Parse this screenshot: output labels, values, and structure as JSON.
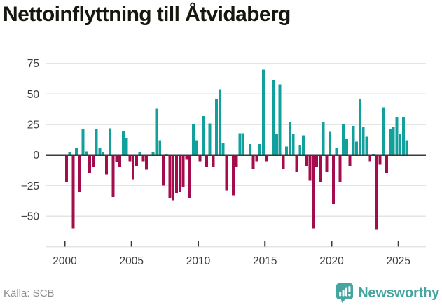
{
  "title": "Nettoinflyttning till Åtvidaberg",
  "footer": {
    "source_label": "Källa: SCB",
    "brand": "Newsworthy"
  },
  "colors": {
    "positive_bar": "#11a09c",
    "negative_bar": "#a30d4d",
    "zero_line": "#3b3b3b",
    "grid_line": "#e4e4e4",
    "axis_text": "#3d3d3d",
    "title_text": "#17170f",
    "source_text": "#8e8e8e",
    "brand_teal": "#45a5a0"
  },
  "chart_data": {
    "type": "bar",
    "title": "Nettoinflyttning till Åtvidaberg",
    "frequency": "quarterly",
    "start": "2000Q1",
    "end": "2025Q3",
    "values": [
      -22,
      2,
      -60,
      6,
      -30,
      21,
      3,
      -15,
      -10,
      21,
      6,
      2,
      -16,
      22,
      -34,
      -6,
      -10,
      20,
      14,
      -5,
      -20,
      -9,
      2,
      -5,
      -12,
      0,
      2,
      38,
      12,
      -25,
      1,
      -35,
      -37,
      -31,
      -30,
      -26,
      -4,
      -35,
      25,
      12,
      -5,
      32,
      -10,
      26,
      -10,
      46,
      54,
      10,
      -29,
      0,
      -33,
      -10,
      18,
      18,
      0,
      9,
      -11,
      -5,
      9,
      70,
      -5,
      0,
      61,
      17,
      58,
      -11,
      7,
      27,
      17,
      -14,
      8,
      16,
      -9,
      -21,
      -60,
      -10,
      -22,
      27,
      -14,
      19,
      -40,
      6,
      -22,
      25,
      13,
      -9,
      24,
      11,
      46,
      23,
      15,
      -5,
      1,
      -61,
      -8,
      39,
      -15,
      21,
      23,
      31,
      17,
      31,
      12
    ],
    "yticks": [
      {
        "value": 75,
        "label": "75"
      },
      {
        "value": 50,
        "label": "50"
      },
      {
        "value": 25,
        "label": "25"
      },
      {
        "value": 0,
        "label": "0"
      },
      {
        "value": -25,
        "label": "−25"
      },
      {
        "value": -50,
        "label": "−50"
      },
      {
        "value": -75,
        "label": ""
      }
    ],
    "xticks": [
      {
        "year": 2000,
        "label": "2000"
      },
      {
        "year": 2005,
        "label": "2005"
      },
      {
        "year": 2010,
        "label": "2010"
      },
      {
        "year": 2015,
        "label": "2015"
      },
      {
        "year": 2020,
        "label": "2020"
      },
      {
        "year": 2025,
        "label": "2025"
      }
    ],
    "ylim": [
      -76,
      79
    ],
    "grid": true,
    "legend": false
  }
}
